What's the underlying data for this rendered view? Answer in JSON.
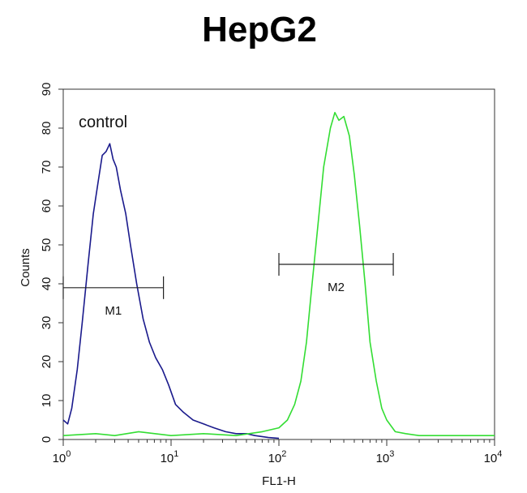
{
  "chart_data": {
    "type": "line",
    "title": "HepG2",
    "xlabel": "FL1-H",
    "ylabel": "Counts",
    "x_scale": "log",
    "xlim": [
      1,
      10000
    ],
    "ylim": [
      0,
      90
    ],
    "x_ticks": [
      {
        "value": 1,
        "base": "10",
        "exp": "0"
      },
      {
        "value": 10,
        "base": "10",
        "exp": "1"
      },
      {
        "value": 100,
        "base": "10",
        "exp": "2"
      },
      {
        "value": 1000,
        "base": "10",
        "exp": "3"
      },
      {
        "value": 10000,
        "base": "10",
        "exp": "4"
      }
    ],
    "y_ticks": [
      "0",
      "10",
      "20",
      "30",
      "40",
      "50",
      "60",
      "70",
      "80",
      "90"
    ],
    "grid": false,
    "colors": {
      "control": "#1a1a8c",
      "sample": "#33dd33"
    },
    "series": [
      {
        "key": "control",
        "x": [
          1.0,
          1.1,
          1.2,
          1.35,
          1.5,
          1.7,
          1.9,
          2.1,
          2.3,
          2.5,
          2.7,
          2.9,
          3.1,
          3.4,
          3.8,
          4.2,
          4.8,
          5.5,
          6.3,
          7.2,
          8.3,
          9.5,
          11,
          13,
          16,
          20,
          25,
          32,
          40,
          50,
          60,
          80,
          100
        ],
        "y": [
          5,
          4,
          8,
          18,
          30,
          45,
          58,
          66,
          73,
          74,
          76,
          72,
          70,
          64,
          58,
          50,
          40,
          31,
          25,
          21,
          18,
          14,
          9,
          7,
          5,
          4,
          3,
          2,
          1.5,
          1.5,
          1,
          0.5,
          0.3
        ]
      },
      {
        "key": "sample",
        "x": [
          1,
          2,
          3,
          5,
          10,
          20,
          40,
          70,
          100,
          120,
          140,
          160,
          180,
          200,
          230,
          260,
          300,
          330,
          360,
          400,
          450,
          500,
          560,
          630,
          700,
          800,
          900,
          1000,
          1200,
          1500,
          2000,
          3000,
          5000,
          10000
        ],
        "y": [
          1,
          1.5,
          1,
          2,
          1,
          1.5,
          1,
          2,
          3,
          5,
          9,
          15,
          25,
          38,
          55,
          70,
          80,
          84,
          82,
          83,
          78,
          68,
          55,
          40,
          25,
          15,
          8,
          5,
          2,
          1.5,
          1,
          1,
          1,
          1
        ]
      }
    ],
    "annotations": {
      "control_label": "control",
      "markers": [
        {
          "label": "M1",
          "x_start": 1.0,
          "x_end": 8.5,
          "y": 39
        },
        {
          "label": "M2",
          "x_start": 100,
          "x_end": 1150,
          "y": 45
        }
      ]
    }
  }
}
